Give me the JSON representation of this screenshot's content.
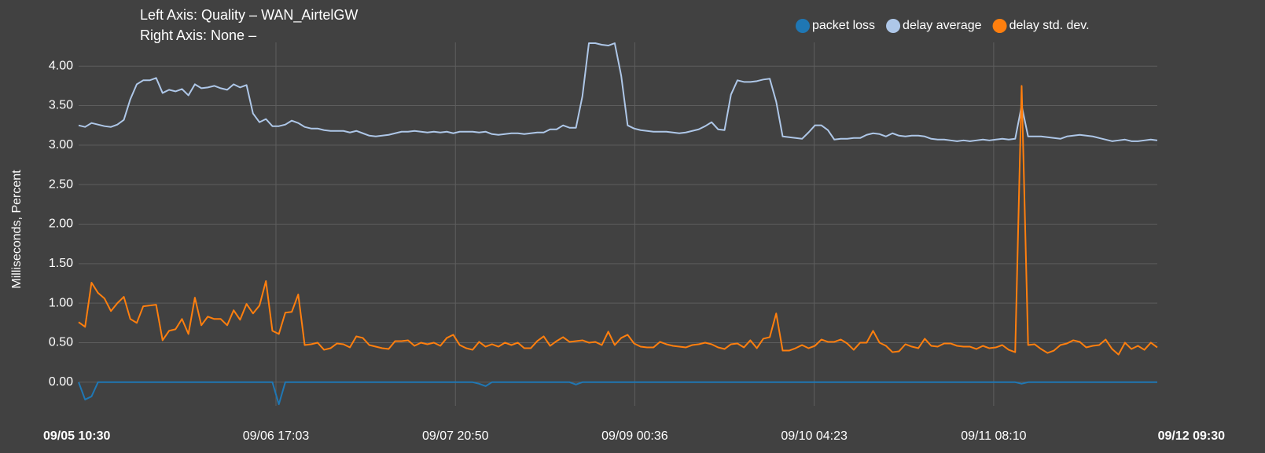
{
  "chart_data": {
    "type": "line",
    "title": "Left Axis: Quality – WAN_AirtelGW",
    "subtitle": "Right Axis: None –",
    "ylabel": "Milliseconds, Percent",
    "legend": "top-right",
    "grid": true,
    "ylim": [
      -0.3,
      4.3
    ],
    "yticks": [
      {
        "value": 0,
        "label": "0.00"
      },
      {
        "value": 0.5,
        "label": "0.50"
      },
      {
        "value": 1,
        "label": "1.00"
      },
      {
        "value": 1.5,
        "label": "1.50"
      },
      {
        "value": 2,
        "label": "2.00"
      },
      {
        "value": 2.5,
        "label": "2.50"
      },
      {
        "value": 3,
        "label": "3.00"
      },
      {
        "value": 3.5,
        "label": "3.50"
      },
      {
        "value": 4,
        "label": "4.00"
      }
    ],
    "xlim": [
      "09/05 10:30",
      "09/12 09:30"
    ],
    "xticks": [
      "09/06 17:03",
      "09/07 20:50",
      "09/09 00:36",
      "09/10 04:23",
      "09/11 08:10"
    ],
    "x": [
      "09/05 10:30",
      "09/05 11:30",
      "09/05 12:30",
      "09/05 13:30",
      "09/05 14:30",
      "09/05 15:30",
      "09/05 16:30",
      "09/05 17:30",
      "09/05 18:30",
      "09/05 19:30",
      "09/05 20:30",
      "09/05 21:30",
      "09/05 22:30",
      "09/05 23:30",
      "09/06 00:30",
      "09/06 01:30",
      "09/06 02:30",
      "09/06 03:30",
      "09/06 04:30",
      "09/06 05:30",
      "09/06 06:30",
      "09/06 07:30",
      "09/06 08:30",
      "09/06 09:30",
      "09/06 10:30",
      "09/06 11:30",
      "09/06 12:30",
      "09/06 13:30",
      "09/06 14:30",
      "09/06 15:30",
      "09/06 16:30",
      "09/06 17:30",
      "09/06 18:30",
      "09/06 19:30",
      "09/06 20:30",
      "09/06 21:30",
      "09/06 22:30",
      "09/06 23:30",
      "09/07 00:30",
      "09/07 01:30",
      "09/07 02:30",
      "09/07 03:30",
      "09/07 04:30",
      "09/07 05:30",
      "09/07 06:30",
      "09/07 07:30",
      "09/07 08:30",
      "09/07 09:30",
      "09/07 10:30",
      "09/07 11:30",
      "09/07 12:30",
      "09/07 13:30",
      "09/07 14:30",
      "09/07 15:30",
      "09/07 16:30",
      "09/07 17:30",
      "09/07 18:30",
      "09/07 19:30",
      "09/07 20:30",
      "09/07 21:30",
      "09/07 22:30",
      "09/07 23:30",
      "09/08 00:30",
      "09/08 01:30",
      "09/08 02:30",
      "09/08 03:30",
      "09/08 04:30",
      "09/08 05:30",
      "09/08 06:30",
      "09/08 07:30",
      "09/08 08:30",
      "09/08 09:30",
      "09/08 10:30",
      "09/08 11:30",
      "09/08 12:30",
      "09/08 13:30",
      "09/08 14:30",
      "09/08 15:30",
      "09/08 16:30",
      "09/08 17:30",
      "09/08 18:30",
      "09/08 19:30",
      "09/08 20:30",
      "09/08 21:30",
      "09/08 22:30",
      "09/08 23:30",
      "09/09 00:30",
      "09/09 01:30",
      "09/09 02:30",
      "09/09 03:30",
      "09/09 04:30",
      "09/09 05:30",
      "09/09 06:30",
      "09/09 07:30",
      "09/09 08:30",
      "09/09 09:30",
      "09/09 10:30",
      "09/09 11:30",
      "09/09 12:30",
      "09/09 13:30",
      "09/09 14:30",
      "09/09 15:30",
      "09/09 16:30",
      "09/09 17:30",
      "09/09 18:30",
      "09/09 19:30",
      "09/09 20:30",
      "09/09 21:30",
      "09/09 22:30",
      "09/09 23:30",
      "09/10 00:30",
      "09/10 01:30",
      "09/10 02:30",
      "09/10 03:30",
      "09/10 04:30",
      "09/10 05:30",
      "09/10 06:30",
      "09/10 07:30",
      "09/10 08:30",
      "09/10 09:30",
      "09/10 10:30",
      "09/10 11:30",
      "09/10 12:30",
      "09/10 13:30",
      "09/10 14:30",
      "09/10 15:30",
      "09/10 16:30",
      "09/10 17:30",
      "09/10 18:30",
      "09/10 19:30",
      "09/10 20:30",
      "09/10 21:30",
      "09/10 22:30",
      "09/10 23:30",
      "09/11 00:30",
      "09/11 01:30",
      "09/11 02:30",
      "09/11 03:30",
      "09/11 04:30",
      "09/11 05:30",
      "09/11 06:30",
      "09/11 07:30",
      "09/11 08:30",
      "09/11 09:30",
      "09/11 10:30",
      "09/11 11:30",
      "09/11 12:30",
      "09/11 13:30",
      "09/11 14:30",
      "09/11 15:30",
      "09/11 16:30",
      "09/11 17:30",
      "09/11 18:30",
      "09/11 19:30",
      "09/11 20:30",
      "09/11 21:30",
      "09/11 22:30",
      "09/11 23:30",
      "09/12 00:30",
      "09/12 01:30",
      "09/12 02:30",
      "09/12 03:30",
      "09/12 04:30",
      "09/12 05:30",
      "09/12 06:30",
      "09/12 07:30",
      "09/12 08:30",
      "09/12 09:30"
    ],
    "series": [
      {
        "name": "packet loss",
        "color": "#1f77b4",
        "values": [
          0,
          -0.22,
          -0.18,
          0,
          0,
          0,
          0,
          0,
          0,
          0,
          0,
          0,
          0,
          0,
          0,
          0,
          0,
          0,
          0,
          0,
          0,
          0,
          0,
          0,
          0,
          0,
          0,
          0,
          0,
          0,
          0,
          -0.28,
          0,
          0,
          0,
          0,
          0,
          0,
          0,
          0,
          0,
          0,
          0,
          0,
          0,
          0,
          0,
          0,
          0,
          0,
          0,
          0,
          0,
          0,
          0,
          0,
          0,
          0,
          0,
          0,
          0,
          0,
          -0.02,
          -0.05,
          0,
          0,
          0,
          0,
          0,
          0,
          0,
          0,
          0,
          0,
          0,
          0,
          0,
          -0.03,
          0,
          0,
          0,
          0,
          0,
          0,
          0,
          0,
          0,
          0,
          0,
          0,
          0,
          0,
          0,
          0,
          0,
          0,
          0,
          0,
          0,
          0,
          0,
          0,
          0,
          0,
          0,
          0,
          0,
          0,
          0,
          0,
          0,
          0,
          0,
          0,
          0,
          0,
          0,
          0,
          0,
          0,
          0,
          0,
          0,
          0,
          0,
          0,
          0,
          0,
          0,
          0,
          0,
          0,
          0,
          0,
          0,
          0,
          0,
          0,
          0,
          0,
          0,
          0,
          0,
          0,
          0,
          0,
          -0.02,
          0,
          0,
          0,
          0,
          0,
          0,
          0,
          0,
          0,
          0,
          0,
          0,
          0,
          0,
          0,
          0,
          0,
          0,
          0,
          0,
          0
        ]
      },
      {
        "name": "delay average",
        "color": "#aec7e8",
        "values": [
          3.25,
          3.23,
          3.28,
          3.26,
          3.24,
          3.23,
          3.26,
          3.32,
          3.58,
          3.77,
          3.82,
          3.82,
          3.85,
          3.66,
          3.7,
          3.68,
          3.71,
          3.63,
          3.77,
          3.72,
          3.73,
          3.75,
          3.72,
          3.7,
          3.77,
          3.73,
          3.76,
          3.4,
          3.29,
          3.33,
          3.24,
          3.24,
          3.26,
          3.31,
          3.28,
          3.23,
          3.21,
          3.21,
          3.19,
          3.18,
          3.18,
          3.18,
          3.16,
          3.18,
          3.15,
          3.12,
          3.11,
          3.12,
          3.13,
          3.15,
          3.17,
          3.17,
          3.18,
          3.17,
          3.16,
          3.17,
          3.16,
          3.17,
          3.15,
          3.17,
          3.17,
          3.17,
          3.16,
          3.17,
          3.14,
          3.13,
          3.14,
          3.15,
          3.15,
          3.14,
          3.15,
          3.16,
          3.16,
          3.2,
          3.2,
          3.25,
          3.22,
          3.22,
          3.62,
          4.29,
          4.29,
          4.27,
          4.26,
          4.29,
          3.88,
          3.25,
          3.21,
          3.19,
          3.18,
          3.17,
          3.17,
          3.17,
          3.16,
          3.15,
          3.16,
          3.18,
          3.2,
          3.24,
          3.29,
          3.2,
          3.19,
          3.64,
          3.82,
          3.8,
          3.8,
          3.81,
          3.83,
          3.84,
          3.55,
          3.11,
          3.1,
          3.09,
          3.08,
          3.16,
          3.25,
          3.25,
          3.19,
          3.07,
          3.08,
          3.08,
          3.09,
          3.09,
          3.13,
          3.15,
          3.14,
          3.11,
          3.15,
          3.12,
          3.11,
          3.12,
          3.12,
          3.11,
          3.08,
          3.07,
          3.07,
          3.06,
          3.05,
          3.06,
          3.05,
          3.06,
          3.07,
          3.06,
          3.07,
          3.08,
          3.07,
          3.08,
          3.5,
          3.11,
          3.11,
          3.11,
          3.1,
          3.09,
          3.08,
          3.11,
          3.12,
          3.13,
          3.12,
          3.11,
          3.09,
          3.07,
          3.05,
          3.06,
          3.07,
          3.05,
          3.05,
          3.06,
          3.07,
          3.06
        ]
      },
      {
        "name": "delay std. dev.",
        "color": "#ff7f0e",
        "values": [
          0.76,
          0.7,
          1.26,
          1.13,
          1.06,
          0.9,
          1.0,
          1.08,
          0.8,
          0.75,
          0.96,
          0.97,
          0.98,
          0.53,
          0.65,
          0.67,
          0.8,
          0.61,
          1.07,
          0.72,
          0.83,
          0.8,
          0.8,
          0.72,
          0.91,
          0.79,
          0.99,
          0.87,
          0.97,
          1.28,
          0.65,
          0.61,
          0.88,
          0.89,
          1.11,
          0.47,
          0.48,
          0.5,
          0.41,
          0.43,
          0.49,
          0.48,
          0.44,
          0.58,
          0.56,
          0.47,
          0.45,
          0.43,
          0.42,
          0.52,
          0.52,
          0.53,
          0.46,
          0.5,
          0.48,
          0.5,
          0.46,
          0.56,
          0.6,
          0.47,
          0.43,
          0.41,
          0.51,
          0.45,
          0.48,
          0.45,
          0.5,
          0.47,
          0.5,
          0.43,
          0.43,
          0.52,
          0.58,
          0.46,
          0.52,
          0.57,
          0.51,
          0.52,
          0.53,
          0.5,
          0.51,
          0.47,
          0.64,
          0.47,
          0.56,
          0.6,
          0.49,
          0.45,
          0.44,
          0.44,
          0.51,
          0.48,
          0.46,
          0.45,
          0.44,
          0.47,
          0.48,
          0.5,
          0.48,
          0.44,
          0.42,
          0.48,
          0.49,
          0.44,
          0.53,
          0.43,
          0.55,
          0.57,
          0.87,
          0.4,
          0.4,
          0.43,
          0.47,
          0.43,
          0.46,
          0.54,
          0.51,
          0.51,
          0.54,
          0.49,
          0.41,
          0.5,
          0.5,
          0.65,
          0.5,
          0.46,
          0.38,
          0.39,
          0.48,
          0.45,
          0.43,
          0.55,
          0.46,
          0.45,
          0.49,
          0.49,
          0.46,
          0.45,
          0.45,
          0.42,
          0.46,
          0.43,
          0.44,
          0.47,
          0.41,
          0.38,
          3.75,
          0.47,
          0.48,
          0.42,
          0.37,
          0.4,
          0.47,
          0.49,
          0.53,
          0.51,
          0.44,
          0.46,
          0.47,
          0.54,
          0.42,
          0.35,
          0.5,
          0.42,
          0.46,
          0.41,
          0.5,
          0.44
        ]
      }
    ]
  }
}
